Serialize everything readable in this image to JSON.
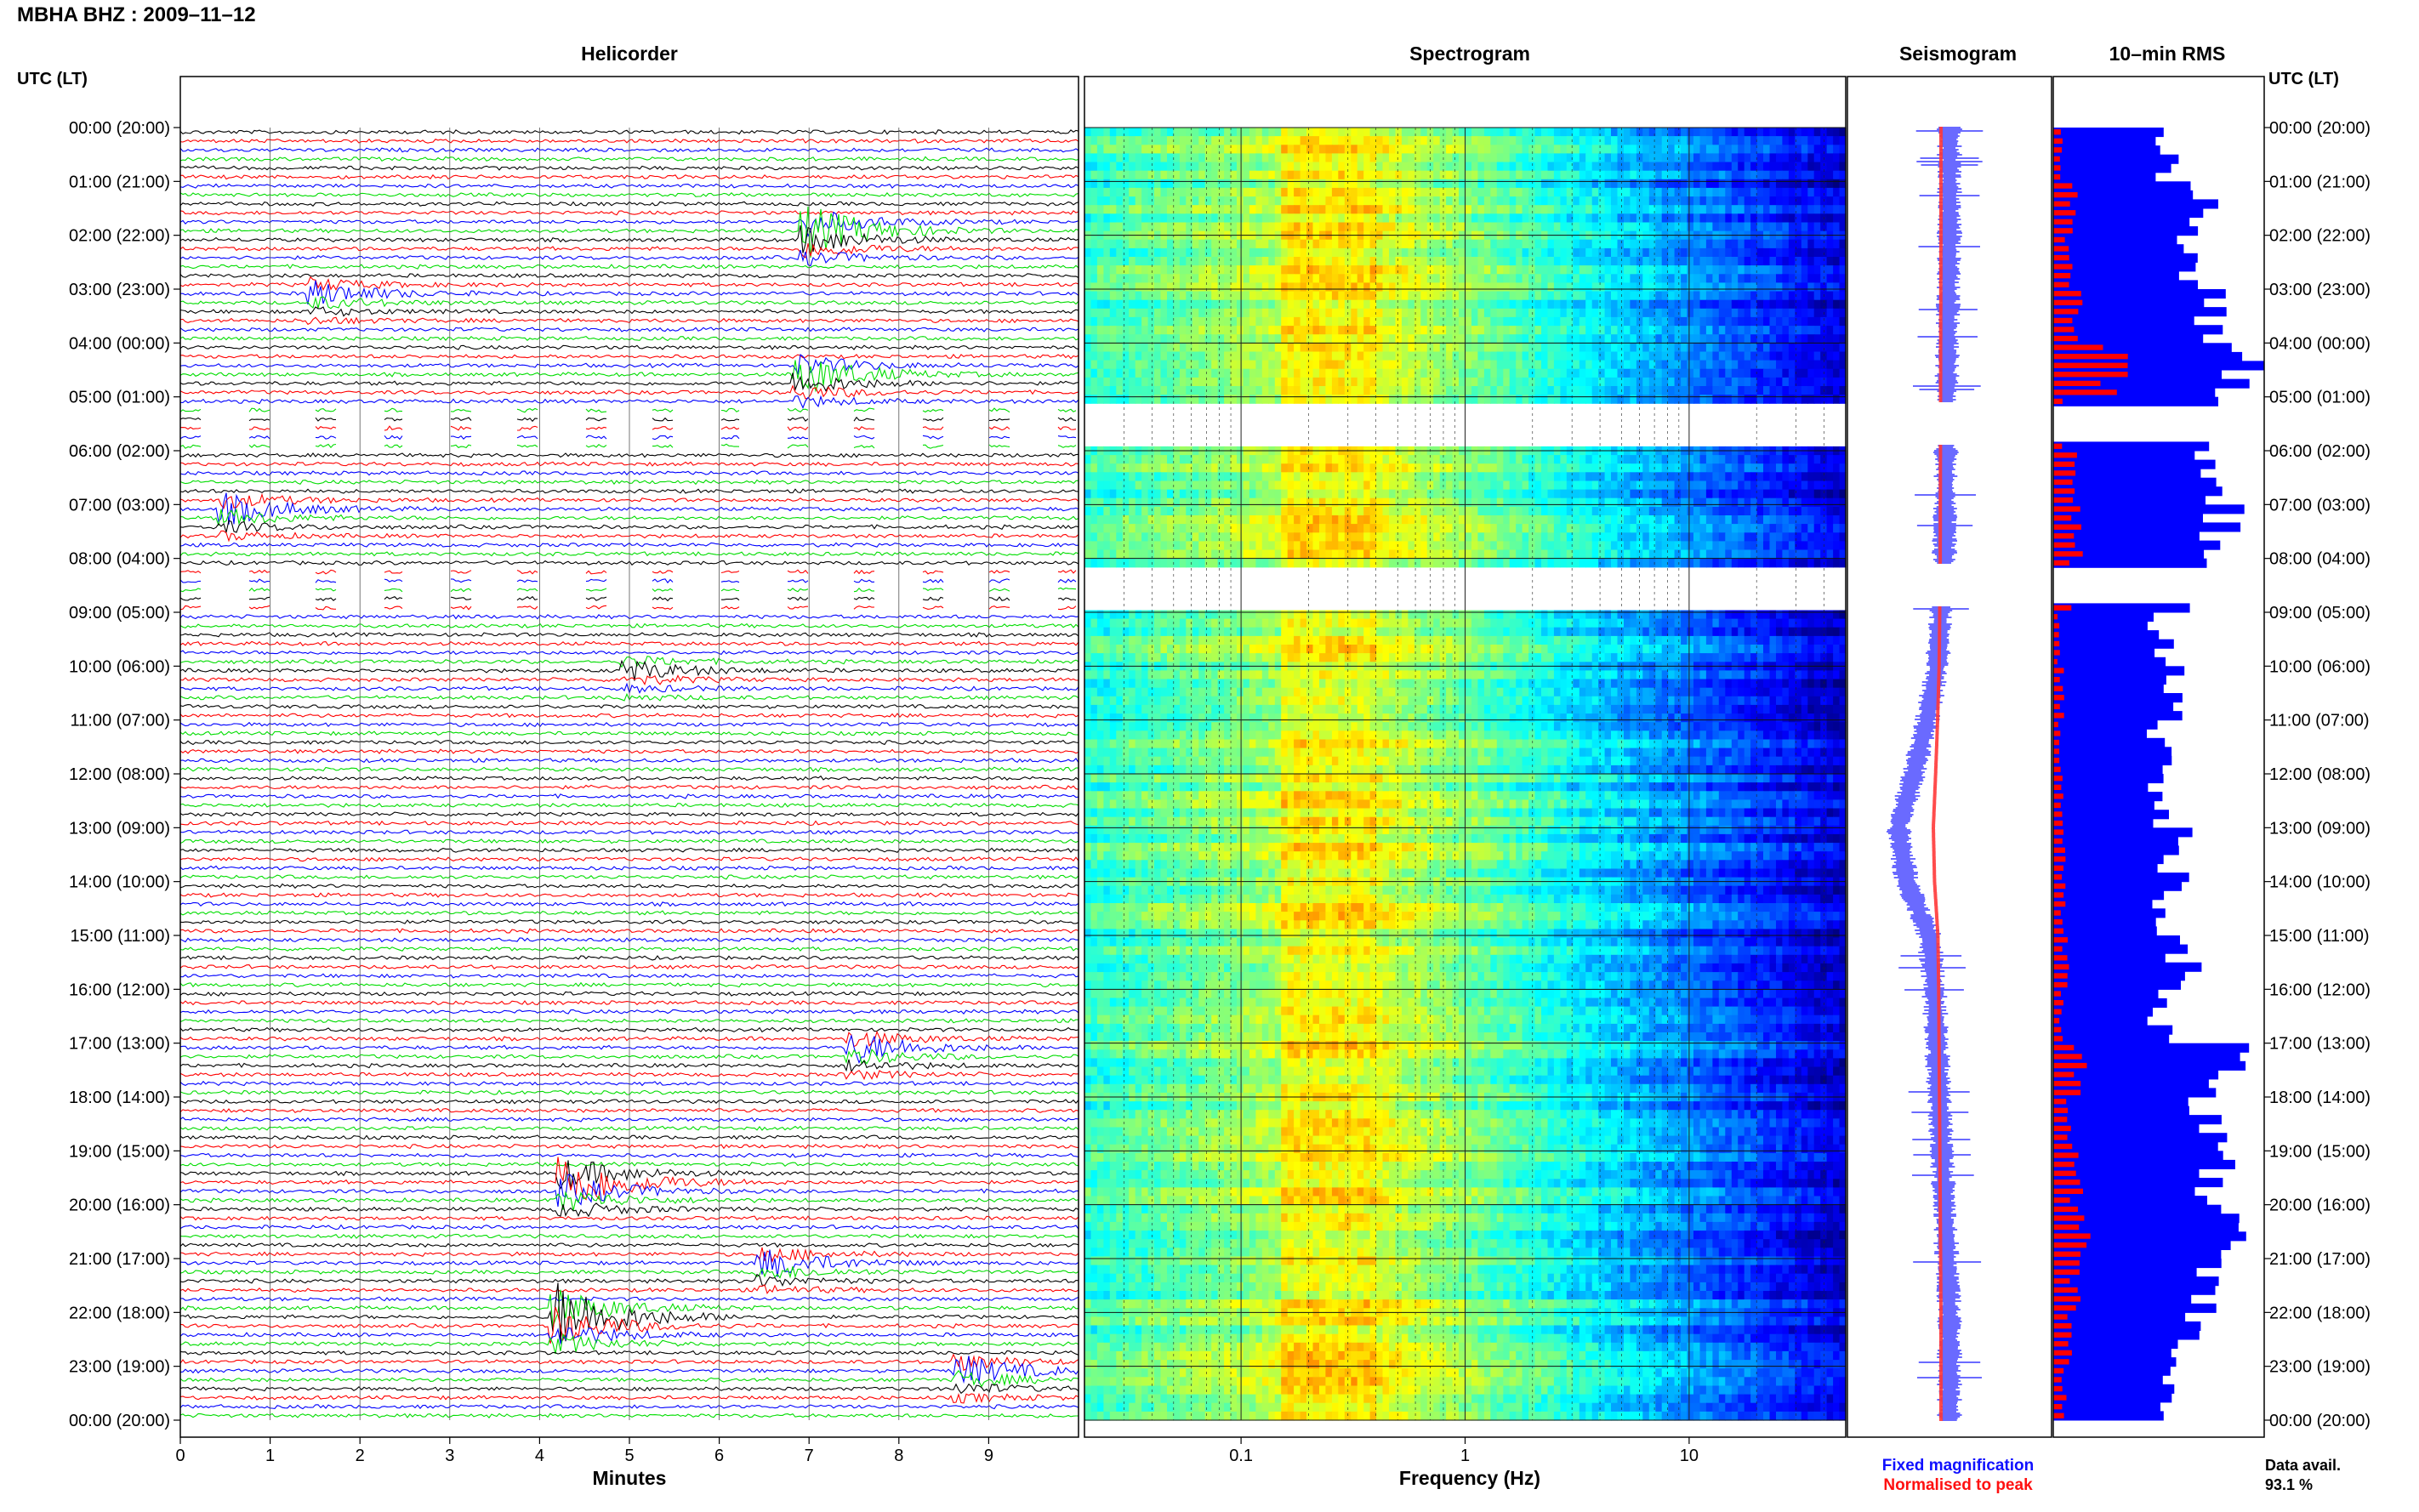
{
  "header": {
    "title": "MBHA BHZ : 2009–11–12"
  },
  "panels": {
    "helicorder": "Helicorder",
    "spectrogram": "Spectrogram",
    "seismogram": "Seismogram",
    "rms": "10–min RMS"
  },
  "time_axis_label": "UTC (LT)",
  "axes": {
    "minutes_label": "Minutes",
    "frequency_label": "Frequency (Hz)"
  },
  "legend": {
    "fixed": "Fixed magnification",
    "normalised": "Normalised to peak",
    "fixed_color": "#1010ff",
    "normalised_color": "#ff1010"
  },
  "data_availability": {
    "label": "Data avail.",
    "value": "93.1 %"
  },
  "colors": {
    "trace_cycle": [
      "#000000",
      "#ff0000",
      "#0000ff",
      "#00dd00"
    ],
    "rms_fixed": "#0000ff",
    "rms_normalised": "#ff0000"
  },
  "chart_data": [
    {
      "type": "line",
      "panel": "helicorder",
      "x_ticks": [
        "0",
        "1",
        "2",
        "3",
        "4",
        "5",
        "6",
        "7",
        "8",
        "9"
      ],
      "xlim": [
        0,
        10
      ],
      "lines_per_hour": 6,
      "hours": 24,
      "time_labels_left": [
        "00:00 (20:00)",
        "01:00 (21:00)",
        "02:00 (22:00)",
        "03:00 (23:00)",
        "04:00 (00:00)",
        "05:00 (01:00)",
        "06:00 (02:00)",
        "07:00 (03:00)",
        "08:00 (04:00)",
        "09:00 (05:00)",
        "10:00 (06:00)",
        "11:00 (07:00)",
        "12:00 (08:00)",
        "13:00 (09:00)",
        "14:00 (10:00)",
        "15:00 (11:00)",
        "16:00 (12:00)",
        "17:00 (13:00)",
        "18:00 (14:00)",
        "19:00 (15:00)",
        "20:00 (16:00)",
        "21:00 (17:00)",
        "22:00 (18:00)",
        "23:00 (19:00)",
        "00:00 (20:00)"
      ],
      "gaps_hours": [
        [
          5.1,
          5.9
        ],
        [
          8.1,
          8.9
        ]
      ],
      "events": [
        {
          "hour": 1.8,
          "minute": 7.0,
          "amplitude": 2.5
        },
        {
          "hour": 3.0,
          "minute": 1.5,
          "amplitude": 1.2
        },
        {
          "hour": 4.5,
          "minute": 6.9,
          "amplitude": 2.0
        },
        {
          "hour": 7.0,
          "minute": 0.5,
          "amplitude": 1.5
        },
        {
          "hour": 10.0,
          "minute": 5.0,
          "amplitude": 1.0
        },
        {
          "hour": 17.0,
          "minute": 7.5,
          "amplitude": 1.5
        },
        {
          "hour": 19.5,
          "minute": 4.3,
          "amplitude": 3.0
        },
        {
          "hour": 21.0,
          "minute": 6.5,
          "amplitude": 1.5
        },
        {
          "hour": 22.0,
          "minute": 4.2,
          "amplitude": 3.5
        },
        {
          "hour": 23.0,
          "minute": 8.7,
          "amplitude": 1.5
        }
      ]
    },
    {
      "type": "heatmap",
      "panel": "spectrogram",
      "x_scale": "log",
      "xlim": [
        0.02,
        50
      ],
      "x_tick_labels": [
        "0.1",
        "1",
        "10"
      ],
      "x_tick_values": [
        0.1,
        1,
        10
      ],
      "peak_band_hz": [
        0.15,
        0.4
      ],
      "gaps_hours": [
        [
          5.1,
          5.9
        ],
        [
          8.1,
          8.9
        ]
      ]
    },
    {
      "type": "line",
      "panel": "seismogram",
      "series": [
        {
          "name": "Fixed magnification",
          "color": "#1010ff"
        },
        {
          "name": "Normalised to peak",
          "color": "#ff1010"
        }
      ],
      "baseline_offsets_by_hour": [
        [
          0,
          0
        ],
        [
          2,
          0
        ],
        [
          4,
          -0.02
        ],
        [
          8,
          -0.05
        ],
        [
          10,
          -0.12
        ],
        [
          11,
          -0.22
        ],
        [
          12,
          -0.35
        ],
        [
          13,
          -0.5
        ],
        [
          14,
          -0.42
        ],
        [
          15,
          -0.2
        ],
        [
          16,
          -0.15
        ],
        [
          18,
          -0.1
        ],
        [
          20,
          -0.05
        ],
        [
          22,
          0
        ],
        [
          24,
          0
        ]
      ]
    },
    {
      "type": "bar",
      "panel": "10-min RMS",
      "orientation": "horizontal",
      "rms_fixed_by_hour": [
        0.55,
        0.7,
        0.68,
        0.72,
        0.9,
        0.7,
        0.72,
        0.8,
        0.75,
        0.5,
        0.55,
        0.52,
        0.5,
        0.58,
        0.55,
        0.62,
        0.5,
        0.85,
        0.72,
        0.75,
        0.8,
        0.7,
        0.62,
        0.55
      ],
      "rms_normalised_by_hour": [
        0.08,
        0.2,
        0.15,
        0.25,
        0.55,
        0.1,
        0.18,
        0.22,
        0.15,
        0.05,
        0.08,
        0.06,
        0.08,
        0.1,
        0.1,
        0.12,
        0.08,
        0.25,
        0.15,
        0.22,
        0.3,
        0.2,
        0.15,
        0.1
      ]
    }
  ]
}
